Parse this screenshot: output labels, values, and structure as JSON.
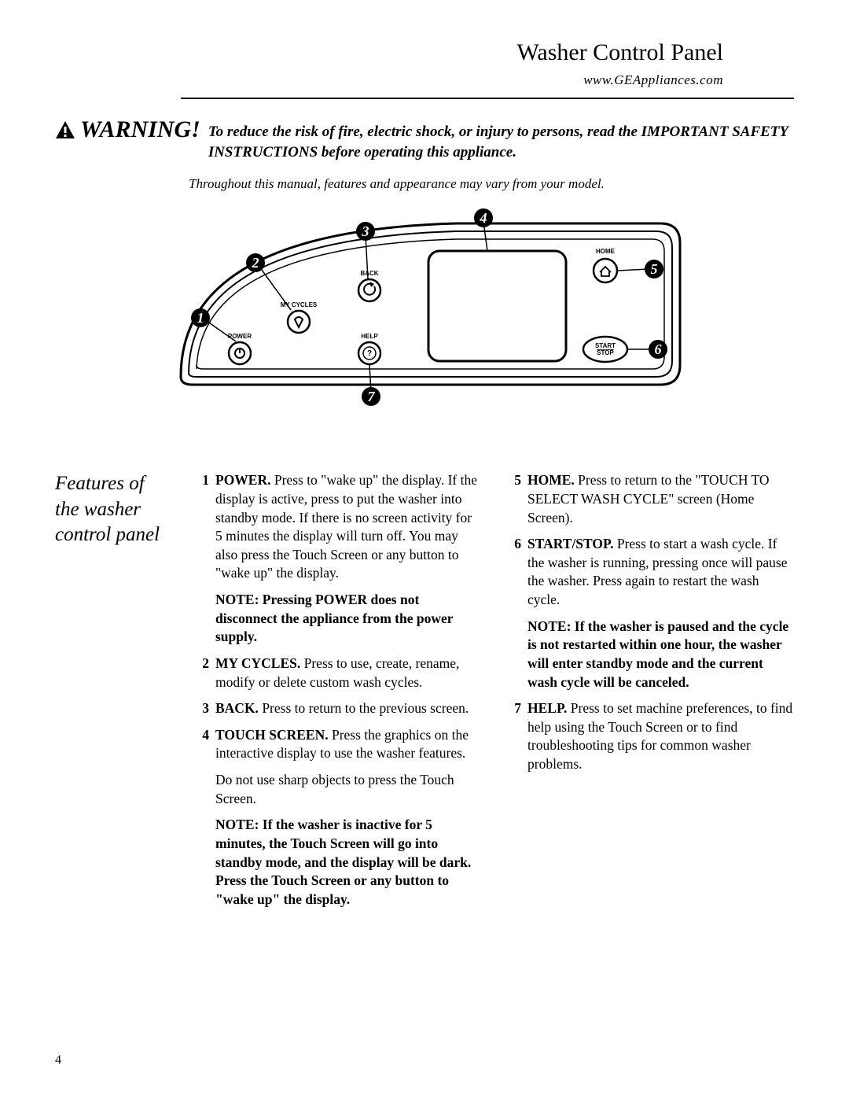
{
  "header": {
    "title": "Washer Control Panel",
    "url": "www.GEAppliances.com"
  },
  "warning": {
    "label": "WARNING!",
    "text": "To reduce the risk of fire, electric shock, or injury to persons, read the IMPORTANT SAFETY INSTRUCTIONS before operating this appliance."
  },
  "subnote": "Throughout this manual, features and appearance may vary from your model.",
  "diagram": {
    "labels": {
      "power": "POWER",
      "mycycles": "MY CYCLES",
      "back": "BACK",
      "help": "HELP",
      "home": "HOME",
      "start": "START",
      "stop": "STOP"
    },
    "callouts": [
      "1",
      "2",
      "3",
      "4",
      "5",
      "6",
      "7"
    ]
  },
  "features": {
    "heading": "Features of the washer control panel",
    "left": [
      {
        "num": "1",
        "lead": "POWER.",
        "text": " Press to \"wake up\" the display. If the display is active, press to put the washer into standby mode. If there is no screen activity for 5 minutes the display will turn off. You may also press the Touch Screen or any button to \"wake up\" the display.",
        "note": "NOTE: Pressing POWER does not disconnect the appliance from the power supply."
      },
      {
        "num": "2",
        "lead": "MY CYCLES.",
        "text": " Press to use, create, rename, modify or delete custom wash cycles."
      },
      {
        "num": "3",
        "lead": "BACK.",
        "text": " Press to return to the previous screen."
      },
      {
        "num": "4",
        "lead": "TOUCH SCREEN.",
        "text": " Press the graphics on the interactive display to use the washer features.",
        "extra": "Do not use sharp objects to press the Touch Screen.",
        "note": "NOTE: If the washer is inactive for 5 minutes, the Touch Screen will go into standby mode, and the display will be dark. Press the Touch Screen or any button to \"wake up\" the display."
      }
    ],
    "right": [
      {
        "num": "5",
        "lead": "HOME.",
        "text": " Press to return to the \"TOUCH TO SELECT WASH CYCLE\" screen (Home Screen)."
      },
      {
        "num": "6",
        "lead": "START/STOP.",
        "text": " Press to start a wash cycle. If the washer is running, pressing once will pause the washer. Press again to restart the wash cycle.",
        "note": "NOTE: If the washer is paused and the cycle is not restarted within one hour, the washer will enter standby mode and the current wash cycle will be canceled."
      },
      {
        "num": "7",
        "lead": "HELP.",
        "text": " Press to set machine preferences, to find help using the Touch Screen or to find troubleshooting tips for common washer problems."
      }
    ]
  },
  "page_number": "4"
}
